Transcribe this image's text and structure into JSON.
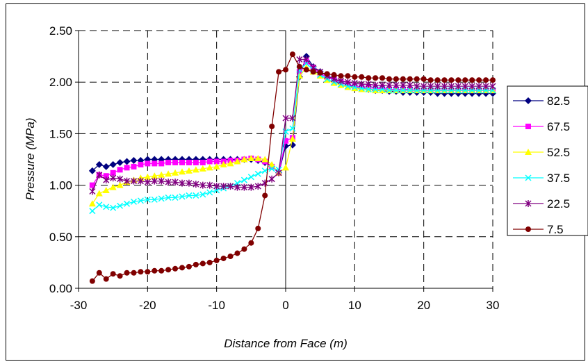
{
  "chart_data": {
    "type": "line",
    "title": "",
    "xlabel": "Distance from Face (m)",
    "ylabel": "Pressure (MPa)",
    "xlim": [
      -30,
      30
    ],
    "ylim": [
      0,
      2.5
    ],
    "x_ticks": [
      "-30",
      "-20",
      "-10",
      "0",
      "10",
      "20",
      "30"
    ],
    "y_ticks": [
      "0.00",
      "0.50",
      "1.00",
      "1.50",
      "2.00",
      "2.50"
    ],
    "grid": true,
    "grid_style": "dashed",
    "legend_position": "right",
    "x": [
      -28,
      -27,
      -26,
      -25,
      -24,
      -23,
      -22,
      -21,
      -20,
      -19,
      -18,
      -17,
      -16,
      -15,
      -14,
      -13,
      -12,
      -11,
      -10,
      -9,
      -8,
      -7,
      -6,
      -5,
      -4,
      -3,
      -2,
      -1,
      0,
      1,
      2,
      3,
      4,
      5,
      6,
      7,
      8,
      9,
      10,
      11,
      12,
      13,
      14,
      15,
      16,
      17,
      18,
      19,
      20,
      21,
      22,
      23,
      24,
      25,
      26,
      27,
      28,
      29,
      30
    ],
    "series": [
      {
        "name": "82.5",
        "color": "#000080",
        "marker": "diamond",
        "values": [
          1.14,
          1.2,
          1.18,
          1.2,
          1.22,
          1.23,
          1.24,
          1.24,
          1.25,
          1.25,
          1.25,
          1.25,
          1.25,
          1.25,
          1.25,
          1.25,
          1.25,
          1.25,
          1.25,
          1.25,
          1.25,
          1.25,
          1.25,
          1.25,
          1.24,
          1.22,
          1.18,
          1.12,
          1.38,
          1.39,
          2.05,
          2.25,
          2.15,
          2.1,
          2.06,
          2.03,
          2.0,
          1.97,
          1.95,
          1.94,
          1.93,
          1.92,
          1.92,
          1.91,
          1.91,
          1.9,
          1.9,
          1.9,
          1.9,
          1.9,
          1.89,
          1.89,
          1.89,
          1.89,
          1.89,
          1.89,
          1.89,
          1.89,
          1.89
        ]
      },
      {
        "name": "67.5",
        "color": "#FF00FF",
        "marker": "square",
        "values": [
          1.0,
          1.1,
          1.09,
          1.12,
          1.15,
          1.17,
          1.18,
          1.2,
          1.21,
          1.21,
          1.21,
          1.22,
          1.22,
          1.22,
          1.22,
          1.22,
          1.22,
          1.23,
          1.23,
          1.23,
          1.24,
          1.24,
          1.25,
          1.26,
          1.25,
          1.23,
          1.18,
          1.12,
          1.43,
          1.46,
          2.1,
          2.2,
          2.14,
          2.08,
          2.05,
          2.02,
          2.0,
          1.98,
          1.96,
          1.95,
          1.95,
          1.94,
          1.94,
          1.93,
          1.93,
          1.93,
          1.93,
          1.92,
          1.92,
          1.92,
          1.92,
          1.92,
          1.92,
          1.92,
          1.92,
          1.92,
          1.92,
          1.92,
          1.92
        ]
      },
      {
        "name": "52.5",
        "color": "#FFFF00",
        "marker": "triangle",
        "values": [
          0.82,
          0.92,
          0.95,
          0.98,
          1.0,
          1.03,
          1.05,
          1.07,
          1.08,
          1.09,
          1.1,
          1.11,
          1.12,
          1.13,
          1.14,
          1.15,
          1.16,
          1.17,
          1.18,
          1.2,
          1.21,
          1.23,
          1.25,
          1.26,
          1.26,
          1.25,
          1.2,
          1.12,
          1.17,
          1.45,
          2.06,
          2.14,
          2.1,
          2.06,
          2.02,
          1.99,
          1.97,
          1.95,
          1.94,
          1.93,
          1.93,
          1.92,
          1.92,
          1.92,
          1.92,
          1.92,
          1.92,
          1.92,
          1.92,
          1.92,
          1.92,
          1.92,
          1.92,
          1.92,
          1.92,
          1.92,
          1.92,
          1.92,
          1.92
        ]
      },
      {
        "name": "37.5",
        "color": "#00FFFF",
        "marker": "x",
        "values": [
          0.75,
          0.81,
          0.79,
          0.78,
          0.8,
          0.82,
          0.84,
          0.85,
          0.86,
          0.86,
          0.87,
          0.88,
          0.88,
          0.89,
          0.9,
          0.9,
          0.91,
          0.93,
          0.95,
          0.97,
          0.99,
          1.02,
          1.05,
          1.08,
          1.11,
          1.14,
          1.16,
          1.15,
          1.52,
          1.55,
          2.12,
          2.18,
          2.12,
          2.07,
          2.03,
          2.0,
          1.98,
          1.96,
          1.95,
          1.94,
          1.93,
          1.93,
          1.93,
          1.92,
          1.92,
          1.92,
          1.92,
          1.92,
          1.92,
          1.92,
          1.92,
          1.92,
          1.92,
          1.92,
          1.92,
          1.92,
          1.92,
          1.92,
          1.92
        ]
      },
      {
        "name": "22.5",
        "color": "#800080",
        "marker": "asterisk",
        "values": [
          0.94,
          1.1,
          1.05,
          1.07,
          1.06,
          1.04,
          1.04,
          1.04,
          1.03,
          1.04,
          1.04,
          1.03,
          1.03,
          1.02,
          1.02,
          1.01,
          1.0,
          1.0,
          0.99,
          0.99,
          0.99,
          0.98,
          0.98,
          0.98,
          0.99,
          1.02,
          1.06,
          1.12,
          1.65,
          1.65,
          2.22,
          2.22,
          2.14,
          2.1,
          2.06,
          2.03,
          2.01,
          2.0,
          1.99,
          1.98,
          1.98,
          1.97,
          1.97,
          1.97,
          1.97,
          1.97,
          1.97,
          1.96,
          1.96,
          1.96,
          1.96,
          1.96,
          1.96,
          1.96,
          1.96,
          1.96,
          1.96,
          1.96,
          1.96
        ]
      },
      {
        "name": "7.5",
        "color": "#800000",
        "marker": "circle",
        "values": [
          0.07,
          0.15,
          0.09,
          0.14,
          0.12,
          0.15,
          0.15,
          0.16,
          0.16,
          0.17,
          0.17,
          0.18,
          0.19,
          0.2,
          0.21,
          0.23,
          0.24,
          0.25,
          0.27,
          0.29,
          0.31,
          0.34,
          0.38,
          0.44,
          0.58,
          0.9,
          1.57,
          2.1,
          2.12,
          2.27,
          2.15,
          2.12,
          2.1,
          2.09,
          2.08,
          2.07,
          2.06,
          2.06,
          2.05,
          2.05,
          2.04,
          2.04,
          2.04,
          2.03,
          2.03,
          2.03,
          2.03,
          2.03,
          2.03,
          2.02,
          2.02,
          2.02,
          2.02,
          2.02,
          2.02,
          2.02,
          2.02,
          2.02,
          2.02
        ]
      }
    ]
  }
}
